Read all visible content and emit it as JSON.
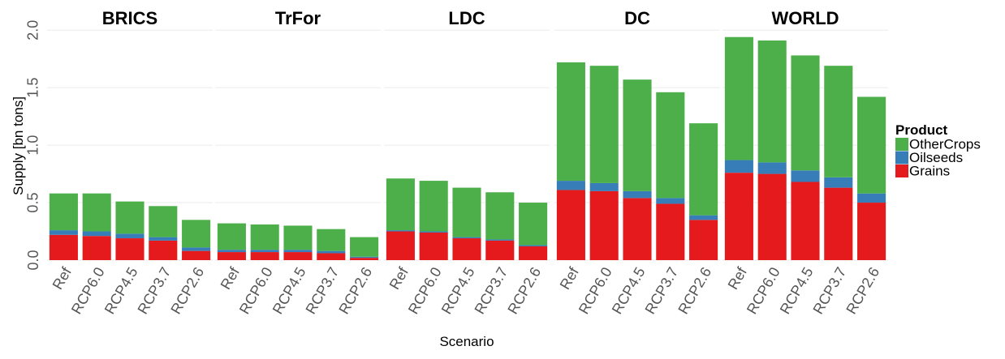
{
  "chart_data": {
    "type": "bar",
    "stacked": true,
    "ylabel": "Supply [bn tons]",
    "xlabel": "Scenario",
    "legend_title": "Product",
    "grid": true,
    "categories": [
      "Ref",
      "RCP6.0",
      "RCP4.5",
      "RCP3.7",
      "RCP2.6"
    ],
    "ylim": [
      0,
      2.1
    ],
    "yticks": [
      {
        "value": 0,
        "label": "0.0"
      },
      {
        "value": 0.5,
        "label": "0.5"
      },
      {
        "value": 1,
        "label": "1.0"
      },
      {
        "value": 1.5,
        "label": "1.5"
      },
      {
        "value": 2,
        "label": "2.0"
      }
    ],
    "series": [
      {
        "name": "Grains",
        "color": "#e41a1c"
      },
      {
        "name": "Oilseeds",
        "color": "#377eb8"
      },
      {
        "name": "OtherCrops",
        "color": "#4daf4a"
      }
    ],
    "facets": [
      {
        "title": "BRICS",
        "series": [
          {
            "values": [
              0.22,
              0.21,
              0.19,
              0.17,
              0.08
            ]
          },
          {
            "values": [
              0.04,
              0.04,
              0.04,
              0.03,
              0.03
            ]
          },
          {
            "values": [
              0.32,
              0.33,
              0.28,
              0.27,
              0.24
            ]
          }
        ]
      },
      {
        "title": "TrFor",
        "series": [
          {
            "values": [
              0.07,
              0.07,
              0.07,
              0.06,
              0.02
            ]
          },
          {
            "values": [
              0.02,
              0.02,
              0.02,
              0.02,
              0.01
            ]
          },
          {
            "values": [
              0.23,
              0.22,
              0.21,
              0.19,
              0.17
            ]
          }
        ]
      },
      {
        "title": "LDC",
        "series": [
          {
            "values": [
              0.25,
              0.24,
              0.19,
              0.17,
              0.12
            ]
          },
          {
            "values": [
              0.01,
              0.01,
              0.01,
              0.01,
              0.01
            ]
          },
          {
            "values": [
              0.45,
              0.44,
              0.43,
              0.41,
              0.37
            ]
          }
        ]
      },
      {
        "title": "DC",
        "series": [
          {
            "values": [
              0.61,
              0.6,
              0.54,
              0.49,
              0.35
            ]
          },
          {
            "values": [
              0.08,
              0.07,
              0.06,
              0.05,
              0.04
            ]
          },
          {
            "values": [
              1.03,
              1.02,
              0.97,
              0.92,
              0.8
            ]
          }
        ]
      },
      {
        "title": "WORLD",
        "series": [
          {
            "values": [
              0.76,
              0.75,
              0.68,
              0.63,
              0.5
            ]
          },
          {
            "values": [
              0.11,
              0.1,
              0.1,
              0.09,
              0.08
            ]
          },
          {
            "values": [
              1.07,
              1.06,
              1.0,
              0.97,
              0.84
            ]
          }
        ]
      }
    ]
  }
}
